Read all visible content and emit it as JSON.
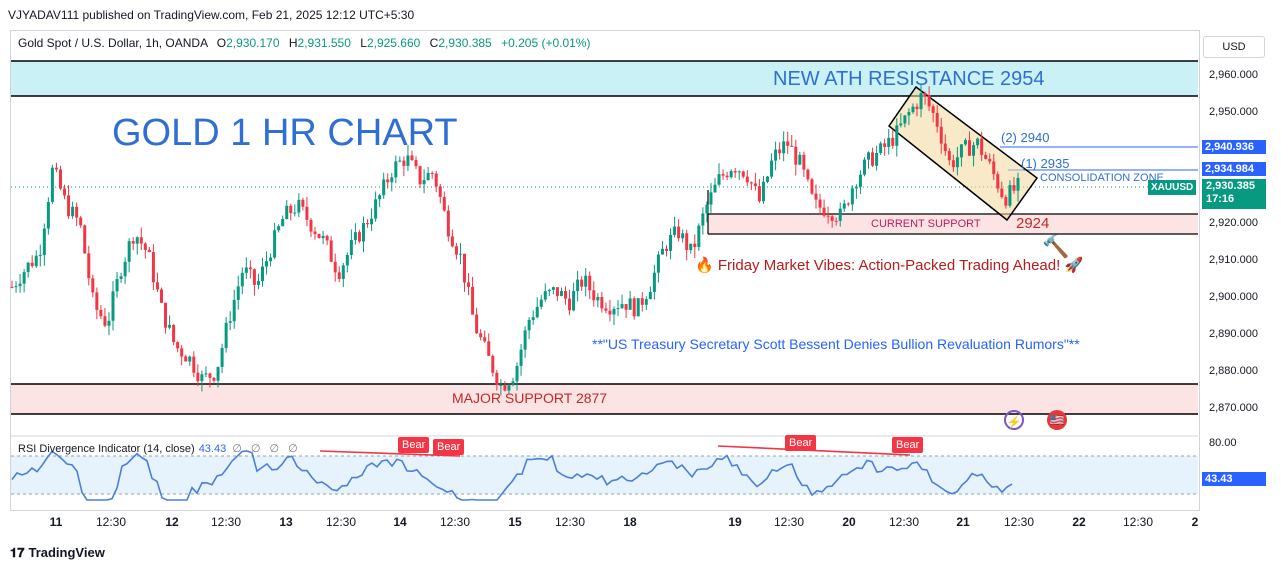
{
  "header": {
    "published": "VJYADAV111 published on TradingView.com, Feb 21, 2025 12:12 UTC+5:30"
  },
  "ohlc": {
    "symbol": "Gold Spot / U.S. Dollar, 1h, OANDA",
    "o_label": "O",
    "o": "2,930.170",
    "h_label": "H",
    "h": "2,931.550",
    "l_label": "L",
    "l": "2,925.660",
    "c_label": "C",
    "c": "2,930.385",
    "change": "+0.205 (+0.01%)"
  },
  "price_axis": {
    "currency": "USD",
    "ticks": [
      "2,960.000",
      "2,950.000",
      "2,940.000",
      "2,930.000",
      "2,920.000",
      "2,910.000",
      "2,900.000",
      "2,890.000",
      "2,880.000",
      "2,870.000"
    ],
    "tag_2940": "2,940.936",
    "tag_2935": "2,934.984",
    "symbol_label": "XAUUSD",
    "current_price": "2,930.385",
    "countdown": "17:16"
  },
  "annotations": {
    "chart_title": "GOLD 1 HR CHART",
    "ath_resistance": "NEW ATH RESISTANCE 2954",
    "level_2940": "(2) 2940",
    "level_2935": "(1) 2935",
    "consolidation": "CONSOLIDATION ZONE",
    "current_support": "CURRENT SUPPORT",
    "level_2924": "2924",
    "friday": "Friday Market Vibes: Action-Packed Trading Ahead!",
    "news": "**\"US Treasury Secretary Scott Bessent Denies Bullion Revaluation Rumors\"**",
    "major_support": "MAJOR SUPPORT 2877"
  },
  "rsi": {
    "legend": "RSI Divergence Indicator (14, close)",
    "value": "43.43",
    "dots": "∅ ∅ ∅ ∅",
    "axis_top": "80.00",
    "value_tag": "43.43",
    "bear_labels": [
      "Bear",
      "Bear",
      "Bear",
      "Bear"
    ]
  },
  "time_axis": {
    "ticks": [
      "11",
      "12:30",
      "12",
      "12:30",
      "13",
      "12:30",
      "14",
      "12:30",
      "15",
      "12:30",
      "18",
      "19",
      "12:30",
      "20",
      "12:30",
      "21",
      "12:30",
      "22",
      "12:30",
      "2"
    ]
  },
  "footer": {
    "brand": "TradingView"
  },
  "colors": {
    "up": "#089981",
    "down": "#f23645",
    "resistance_zone": "#b2ebf2",
    "support_zone": "#fde4e4",
    "accent_blue": "#2962ff",
    "title_blue": "#2f6fd1",
    "rsi_line": "#4a7fd8",
    "rsi_band": "#e3f2fd"
  },
  "chart_data": {
    "type": "candlestick",
    "title": "GOLD 1 HR CHART",
    "symbol": "XAUUSD",
    "timeframe": "1h",
    "ylim": [
      2863,
      2968
    ],
    "x_labels": [
      "11",
      "12:30",
      "12",
      "12:30",
      "13",
      "12:30",
      "14",
      "12:30",
      "15",
      "12:30",
      "18",
      "19",
      "12:30",
      "20",
      "12:30",
      "21",
      "12:30",
      "22",
      "12:30",
      "2"
    ],
    "close_path": [
      2903,
      2908,
      2912,
      2935,
      2925,
      2920,
      2898,
      2893,
      2908,
      2918,
      2912,
      2897,
      2887,
      2884,
      2878,
      2880,
      2895,
      2908,
      2903,
      2913,
      2922,
      2925,
      2920,
      2915,
      2907,
      2914,
      2920,
      2927,
      2935,
      2938,
      2932,
      2934,
      2920,
      2911,
      2893,
      2884,
      2876,
      2880,
      2894,
      2900,
      2902,
      2899,
      2905,
      2900,
      2898,
      2899,
      2897,
      2904,
      2914,
      2918,
      2912,
      2924,
      2932,
      2936,
      2934,
      2926,
      2938,
      2942,
      2936,
      2925,
      2924,
      2922,
      2932,
      2937,
      2940,
      2944,
      2950,
      2955,
      2948,
      2936,
      2940,
      2942,
      2935,
      2927,
      2930
    ],
    "levels": {
      "ath_resistance": 2954,
      "resistance_zone_top": 2964,
      "target_2": 2940.936,
      "target_1": 2934.984,
      "current_support_top": 2922,
      "current_support_bottom": 2917,
      "major_support_top": 2877,
      "major_support_bottom": 2868,
      "last_price": 2930.385
    },
    "rsi": {
      "axis_top": 80,
      "last": 43.43
    }
  }
}
